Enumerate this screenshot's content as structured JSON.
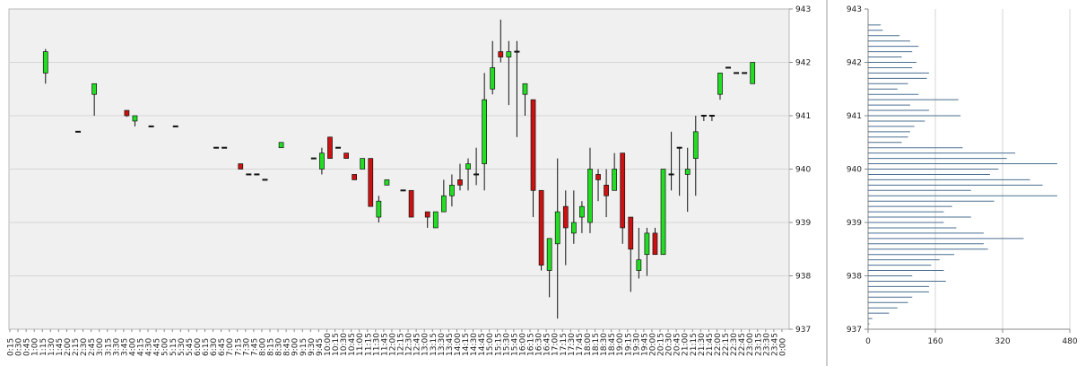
{
  "chart_data": [
    {
      "type": "candlestick",
      "title": "",
      "xlabel": "",
      "ylabel": "",
      "ylim": [
        937,
        943
      ],
      "y_ticks": [
        "937",
        "938",
        "939",
        "940",
        "941",
        "942",
        "943"
      ],
      "y_axis_position": "right",
      "grid": "horizontal",
      "background": "#f0f0f0",
      "up_color": "#22dd22",
      "down_color": "#cc1111",
      "x_tick_labels": [
        "0:15",
        "0:30",
        "0:45",
        "1:00",
        "1:15",
        "1:30",
        "1:45",
        "2:00",
        "2:15",
        "2:30",
        "2:45",
        "3:00",
        "3:15",
        "3:30",
        "3:45",
        "4:00",
        "4:15",
        "4:30",
        "4:45",
        "5:00",
        "5:15",
        "5:30",
        "5:45",
        "6:00",
        "6:15",
        "6:30",
        "6:45",
        "7:00",
        "7:15",
        "7:30",
        "7:45",
        "8:00",
        "8:15",
        "8:30",
        "8:45",
        "9:00",
        "9:15",
        "9:30",
        "9:45",
        "10:00",
        "10:15",
        "10:30",
        "10:45",
        "11:00",
        "11:15",
        "11:30",
        "11:45",
        "12:00",
        "12:15",
        "12:30",
        "12:45",
        "13:00",
        "13:15",
        "13:30",
        "13:45",
        "14:00",
        "14:15",
        "14:30",
        "14:45",
        "15:00",
        "15:15",
        "15:30",
        "15:45",
        "16:00",
        "16:15",
        "16:30",
        "16:45",
        "17:00",
        "17:15",
        "17:30",
        "17:45",
        "18:00",
        "18:15",
        "18:30",
        "18:45",
        "19:00",
        "19:15",
        "19:30",
        "19:45",
        "20:00",
        "20:15",
        "20:30",
        "20:45",
        "21:00",
        "21:15",
        "21:30",
        "21:45",
        "22:00",
        "22:15",
        "22:30",
        "22:45",
        "23:00",
        "23:15",
        "23:30",
        "23:45",
        "0:00"
      ],
      "candles": [
        {
          "x": "1:15",
          "o": 941.8,
          "h": 942.25,
          "l": 941.6,
          "c": 942.2
        },
        {
          "x": "2:15",
          "o": 940.7,
          "h": 940.7,
          "l": 940.7,
          "c": 940.7
        },
        {
          "x": "2:45",
          "o": 941.4,
          "h": 941.6,
          "l": 941.0,
          "c": 941.6
        },
        {
          "x": "3:45",
          "o": 941.1,
          "h": 941.1,
          "l": 940.98,
          "c": 941.0
        },
        {
          "x": "4:00",
          "o": 940.9,
          "h": 941.0,
          "l": 940.8,
          "c": 941.0
        },
        {
          "x": "4:30",
          "o": 940.8,
          "h": 940.8,
          "l": 940.8,
          "c": 940.8
        },
        {
          "x": "5:15",
          "o": 940.8,
          "h": 940.8,
          "l": 940.8,
          "c": 940.8
        },
        {
          "x": "6:30",
          "o": 940.4,
          "h": 940.4,
          "l": 940.4,
          "c": 940.4
        },
        {
          "x": "6:45",
          "o": 940.4,
          "h": 940.4,
          "l": 940.4,
          "c": 940.4
        },
        {
          "x": "7:15",
          "o": 940.1,
          "h": 940.1,
          "l": 940.0,
          "c": 940.0
        },
        {
          "x": "7:30",
          "o": 939.9,
          "h": 939.9,
          "l": 939.9,
          "c": 939.9
        },
        {
          "x": "7:45",
          "o": 939.9,
          "h": 939.9,
          "l": 939.9,
          "c": 939.9
        },
        {
          "x": "8:00",
          "o": 939.8,
          "h": 939.8,
          "l": 939.8,
          "c": 939.8
        },
        {
          "x": "8:30",
          "o": 940.4,
          "h": 940.5,
          "l": 940.4,
          "c": 940.5
        },
        {
          "x": "9:30",
          "o": 940.2,
          "h": 940.2,
          "l": 940.2,
          "c": 940.2
        },
        {
          "x": "9:45",
          "o": 940.0,
          "h": 940.4,
          "l": 939.9,
          "c": 940.3
        },
        {
          "x": "10:00",
          "o": 940.6,
          "h": 940.6,
          "l": 940.2,
          "c": 940.2
        },
        {
          "x": "10:15",
          "o": 940.4,
          "h": 940.4,
          "l": 940.4,
          "c": 940.4
        },
        {
          "x": "10:30",
          "o": 940.3,
          "h": 940.3,
          "l": 940.2,
          "c": 940.2
        },
        {
          "x": "10:45",
          "o": 939.9,
          "h": 939.9,
          "l": 939.8,
          "c": 939.8
        },
        {
          "x": "11:00",
          "o": 940.0,
          "h": 940.2,
          "l": 940.0,
          "c": 940.2
        },
        {
          "x": "11:15",
          "o": 940.2,
          "h": 940.2,
          "l": 939.3,
          "c": 939.3
        },
        {
          "x": "11:30",
          "o": 939.1,
          "h": 939.5,
          "l": 939.0,
          "c": 939.4
        },
        {
          "x": "11:45",
          "o": 939.7,
          "h": 939.8,
          "l": 939.7,
          "c": 939.8
        },
        {
          "x": "12:15",
          "o": 939.6,
          "h": 939.6,
          "l": 939.6,
          "c": 939.6
        },
        {
          "x": "12:30",
          "o": 939.6,
          "h": 939.6,
          "l": 939.1,
          "c": 939.1
        },
        {
          "x": "13:00",
          "o": 939.2,
          "h": 939.2,
          "l": 938.9,
          "c": 939.1
        },
        {
          "x": "13:15",
          "o": 938.9,
          "h": 939.2,
          "l": 938.9,
          "c": 939.2
        },
        {
          "x": "13:30",
          "o": 939.2,
          "h": 939.8,
          "l": 939.2,
          "c": 939.5
        },
        {
          "x": "13:45",
          "o": 939.5,
          "h": 939.9,
          "l": 939.3,
          "c": 939.7
        },
        {
          "x": "14:00",
          "o": 939.8,
          "h": 940.1,
          "l": 939.6,
          "c": 939.7
        },
        {
          "x": "14:15",
          "o": 940.0,
          "h": 940.2,
          "l": 939.6,
          "c": 940.1
        },
        {
          "x": "14:30",
          "o": 939.9,
          "h": 940.4,
          "l": 939.7,
          "c": 939.9
        },
        {
          "x": "14:45",
          "o": 940.1,
          "h": 941.8,
          "l": 939.6,
          "c": 941.3
        },
        {
          "x": "15:00",
          "o": 941.5,
          "h": 942.4,
          "l": 941.4,
          "c": 941.9
        },
        {
          "x": "15:15",
          "o": 942.2,
          "h": 942.8,
          "l": 942.0,
          "c": 942.1
        },
        {
          "x": "15:30",
          "o": 942.1,
          "h": 942.4,
          "l": 941.2,
          "c": 942.2
        },
        {
          "x": "15:45",
          "o": 942.2,
          "h": 942.4,
          "l": 940.6,
          "c": 942.2
        },
        {
          "x": "16:00",
          "o": 941.4,
          "h": 941.6,
          "l": 941.0,
          "c": 941.6
        },
        {
          "x": "16:15",
          "o": 941.3,
          "h": 941.3,
          "l": 939.1,
          "c": 939.6
        },
        {
          "x": "16:30",
          "o": 939.6,
          "h": 939.6,
          "l": 938.1,
          "c": 938.2
        },
        {
          "x": "16:45",
          "o": 938.1,
          "h": 938.7,
          "l": 937.6,
          "c": 938.7
        },
        {
          "x": "17:00",
          "o": 938.6,
          "h": 940.2,
          "l": 937.2,
          "c": 939.2
        },
        {
          "x": "17:15",
          "o": 939.3,
          "h": 939.6,
          "l": 938.2,
          "c": 938.9
        },
        {
          "x": "17:30",
          "o": 938.8,
          "h": 939.6,
          "l": 938.6,
          "c": 939.0
        },
        {
          "x": "17:45",
          "o": 939.1,
          "h": 939.4,
          "l": 938.8,
          "c": 939.3
        },
        {
          "x": "18:00",
          "o": 939.0,
          "h": 940.4,
          "l": 938.8,
          "c": 940.0
        },
        {
          "x": "18:15",
          "o": 939.9,
          "h": 940.0,
          "l": 939.4,
          "c": 939.8
        },
        {
          "x": "18:30",
          "o": 939.7,
          "h": 940.0,
          "l": 939.1,
          "c": 939.5
        },
        {
          "x": "18:45",
          "o": 939.6,
          "h": 940.3,
          "l": 939.6,
          "c": 940.0
        },
        {
          "x": "19:00",
          "o": 940.3,
          "h": 940.3,
          "l": 938.6,
          "c": 938.9
        },
        {
          "x": "19:15",
          "o": 939.1,
          "h": 939.1,
          "l": 937.7,
          "c": 938.5
        },
        {
          "x": "19:30",
          "o": 938.1,
          "h": 938.9,
          "l": 937.95,
          "c": 938.3
        },
        {
          "x": "19:45",
          "o": 938.4,
          "h": 938.9,
          "l": 938.0,
          "c": 938.8
        },
        {
          "x": "20:00",
          "o": 938.8,
          "h": 938.9,
          "l": 938.4,
          "c": 938.4
        },
        {
          "x": "20:15",
          "o": 938.4,
          "h": 940.0,
          "l": 938.4,
          "c": 940.0
        },
        {
          "x": "20:30",
          "o": 939.9,
          "h": 940.7,
          "l": 939.6,
          "c": 939.9
        },
        {
          "x": "20:45",
          "o": 940.4,
          "h": 940.4,
          "l": 939.5,
          "c": 940.4
        },
        {
          "x": "21:00",
          "o": 939.9,
          "h": 940.4,
          "l": 939.2,
          "c": 940.0
        },
        {
          "x": "21:15",
          "o": 940.2,
          "h": 941.0,
          "l": 939.5,
          "c": 940.7
        },
        {
          "x": "21:30",
          "o": 941.0,
          "h": 941.0,
          "l": 940.9,
          "c": 941.0
        },
        {
          "x": "21:45",
          "o": 941.0,
          "h": 941.0,
          "l": 940.9,
          "c": 941.0
        },
        {
          "x": "22:00",
          "o": 941.4,
          "h": 941.8,
          "l": 941.3,
          "c": 941.8
        },
        {
          "x": "22:15",
          "o": 941.9,
          "h": 941.9,
          "l": 941.9,
          "c": 941.9
        },
        {
          "x": "22:30",
          "o": 941.8,
          "h": 941.8,
          "l": 941.8,
          "c": 941.8
        },
        {
          "x": "22:45",
          "o": 941.8,
          "h": 941.8,
          "l": 941.8,
          "c": 941.8
        },
        {
          "x": "23:00",
          "o": 941.6,
          "h": 942.0,
          "l": 941.6,
          "c": 942.0
        }
      ]
    },
    {
      "type": "bar",
      "orientation": "horizontal",
      "title": "",
      "xlabel": "",
      "ylabel": "",
      "ylim": [
        937,
        943
      ],
      "xlim": [
        0,
        480
      ],
      "x_ticks": [
        "0",
        "160",
        "320",
        "480"
      ],
      "y_ticks": [
        "937",
        "938",
        "939",
        "940",
        "941",
        "942",
        "943"
      ],
      "grid": "vertical",
      "bar_color": "#4a6e90",
      "levels": [
        942.7,
        942.6,
        942.5,
        942.4,
        942.3,
        942.2,
        942.1,
        942.0,
        941.9,
        941.8,
        941.7,
        941.6,
        941.5,
        941.4,
        941.3,
        941.2,
        941.1,
        941.0,
        940.9,
        940.8,
        940.7,
        940.6,
        940.5,
        940.4,
        940.3,
        940.2,
        940.1,
        940.0,
        939.9,
        939.8,
        939.7,
        939.6,
        939.5,
        939.4,
        939.3,
        939.2,
        939.1,
        939.0,
        938.9,
        938.8,
        938.7,
        938.6,
        938.5,
        938.4,
        938.3,
        938.2,
        938.1,
        938.0,
        937.9,
        937.8,
        937.7,
        937.6,
        937.5,
        937.4,
        937.3,
        937.2,
        937.1
      ],
      "volumes": [
        30,
        35,
        75,
        100,
        120,
        105,
        80,
        115,
        105,
        145,
        140,
        95,
        70,
        120,
        215,
        100,
        145,
        220,
        135,
        110,
        100,
        95,
        80,
        225,
        350,
        330,
        450,
        310,
        290,
        385,
        415,
        245,
        450,
        300,
        200,
        180,
        245,
        180,
        210,
        275,
        370,
        275,
        285,
        205,
        170,
        150,
        180,
        105,
        185,
        145,
        145,
        105,
        95,
        70,
        50,
        10,
        3
      ]
    }
  ]
}
